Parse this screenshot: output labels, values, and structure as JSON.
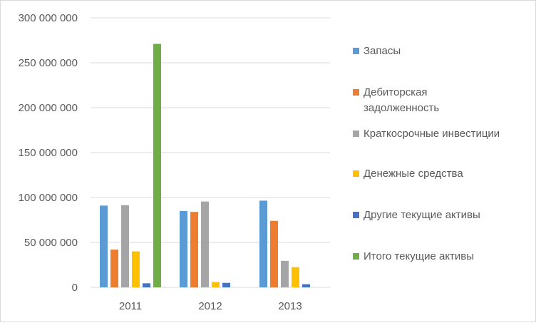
{
  "chart_data": {
    "type": "bar",
    "categories": [
      "2011",
      "2012",
      "2013"
    ],
    "ylim": [
      0,
      300000000
    ],
    "y_ticks": [
      "0",
      "50 000 000",
      "100 000 000",
      "150 000 000",
      "200 000 000",
      "250 000 000",
      "300 000 000"
    ],
    "grid": true,
    "legend_position": "right",
    "series": [
      {
        "name": "Запасы",
        "color": "#5b9bd5",
        "values": [
          91000000,
          85000000,
          96500000
        ]
      },
      {
        "name": "Дебиторская задолженность",
        "color": "#ed7d31",
        "values": [
          42000000,
          84000000,
          74000000
        ]
      },
      {
        "name": "Краткосрочные инвестиции",
        "color": "#a5a5a5",
        "values": [
          91500000,
          95500000,
          29500000
        ]
      },
      {
        "name": "Денежные средства",
        "color": "#ffc000",
        "values": [
          40000000,
          6000000,
          22500000
        ]
      },
      {
        "name": "Другие текущие активы",
        "color": "#4472c4",
        "values": [
          4500000,
          5000000,
          3500000
        ]
      },
      {
        "name": "Итого текущие активы",
        "color": "#70ad47",
        "values": [
          271000000,
          0,
          0
        ]
      }
    ]
  }
}
